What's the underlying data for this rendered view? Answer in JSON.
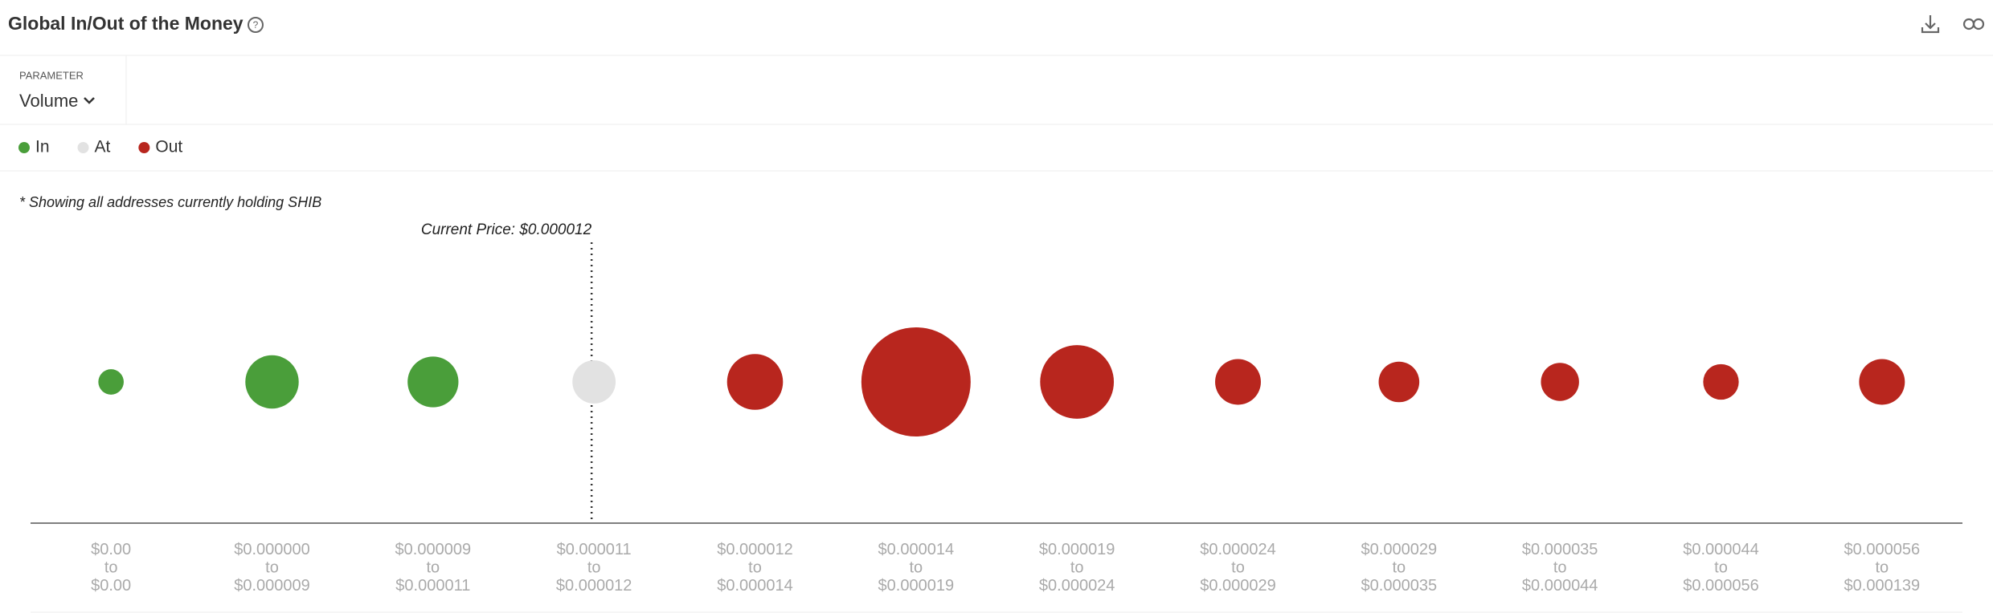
{
  "header": {
    "title": "Global In/Out of the Money"
  },
  "parameter": {
    "label": "PARAMETER",
    "value": "Volume"
  },
  "chart_data": {
    "type": "bubble",
    "note": "* Showing all addresses currently holding SHIB",
    "annotation": {
      "text": "Current Price: $0.000012",
      "category_index": 3
    },
    "categories": [
      [
        "$0.00",
        "to",
        "$0.00"
      ],
      [
        "$0.000000",
        "to",
        "$0.000009"
      ],
      [
        "$0.000009",
        "to",
        "$0.000011"
      ],
      [
        "$0.000011",
        "to",
        "$0.000012"
      ],
      [
        "$0.000012",
        "to",
        "$0.000014"
      ],
      [
        "$0.000014",
        "to",
        "$0.000019"
      ],
      [
        "$0.000019",
        "to",
        "$0.000024"
      ],
      [
        "$0.000024",
        "to",
        "$0.000029"
      ],
      [
        "$0.000029",
        "to",
        "$0.000035"
      ],
      [
        "$0.000035",
        "to",
        "$0.000044"
      ],
      [
        "$0.000044",
        "to",
        "$0.000056"
      ],
      [
        "$0.000056",
        "to",
        "$0.000139"
      ]
    ],
    "series": [
      {
        "name": "In",
        "color": "#4a9e3a",
        "values": [
          100,
          441,
          400,
          null,
          null,
          null,
          null,
          null,
          null,
          null,
          null,
          null
        ]
      },
      {
        "name": "At",
        "color": "#e2e2e2",
        "values": [
          null,
          null,
          null,
          289,
          null,
          null,
          null,
          null,
          null,
          null,
          null,
          null
        ]
      },
      {
        "name": "Out",
        "color": "#b8261e",
        "values": [
          null,
          null,
          null,
          null,
          484,
          1849,
          841,
          324,
          256,
          225,
          196,
          324
        ]
      }
    ]
  }
}
